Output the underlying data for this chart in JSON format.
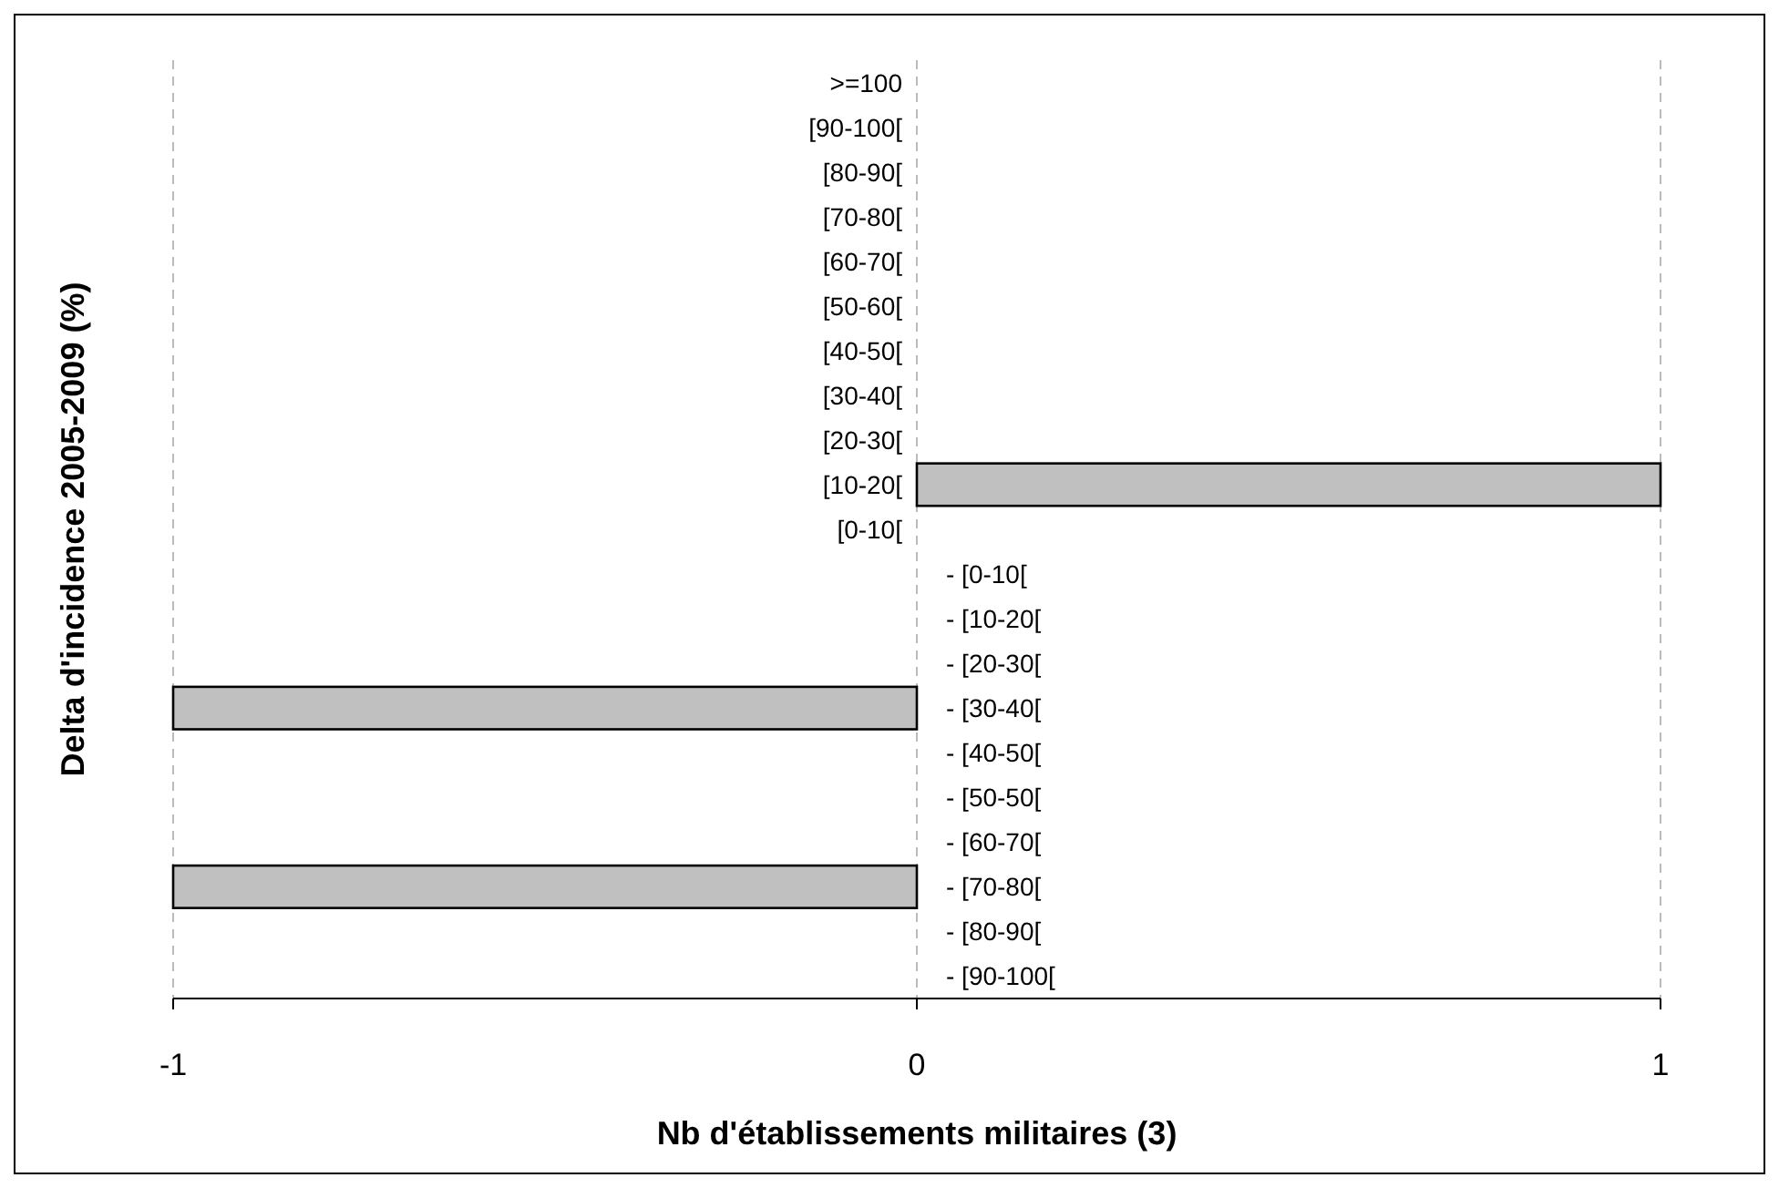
{
  "chart_data": {
    "type": "bar",
    "orientation": "horizontal",
    "xlabel": "Nb d'établissements militaires (3)",
    "ylabel": "Delta d'incidence 2005-2009 (%)",
    "categories": [
      ">=100",
      "[90-100[",
      "[80-90[",
      "[70-80[",
      "[60-70[",
      "[50-60[",
      "[40-50[",
      "[30-40[",
      "[20-30[",
      "[10-20[",
      "[0-10[",
      "- [0-10[",
      "- [10-20[",
      "- [20-30[",
      "- [30-40[",
      "- [40-50[",
      "- [50-50[",
      "- [60-70[",
      "- [70-80[",
      "- [80-90[",
      "- [90-100["
    ],
    "values": [
      0,
      0,
      0,
      0,
      0,
      0,
      0,
      0,
      0,
      1,
      0,
      0,
      0,
      0,
      -1,
      0,
      0,
      0,
      -1,
      0,
      0
    ],
    "color": "#c0c0c0",
    "xlim": [
      -1,
      1
    ],
    "xticks": [
      -1,
      0,
      1
    ],
    "grid": "x"
  }
}
